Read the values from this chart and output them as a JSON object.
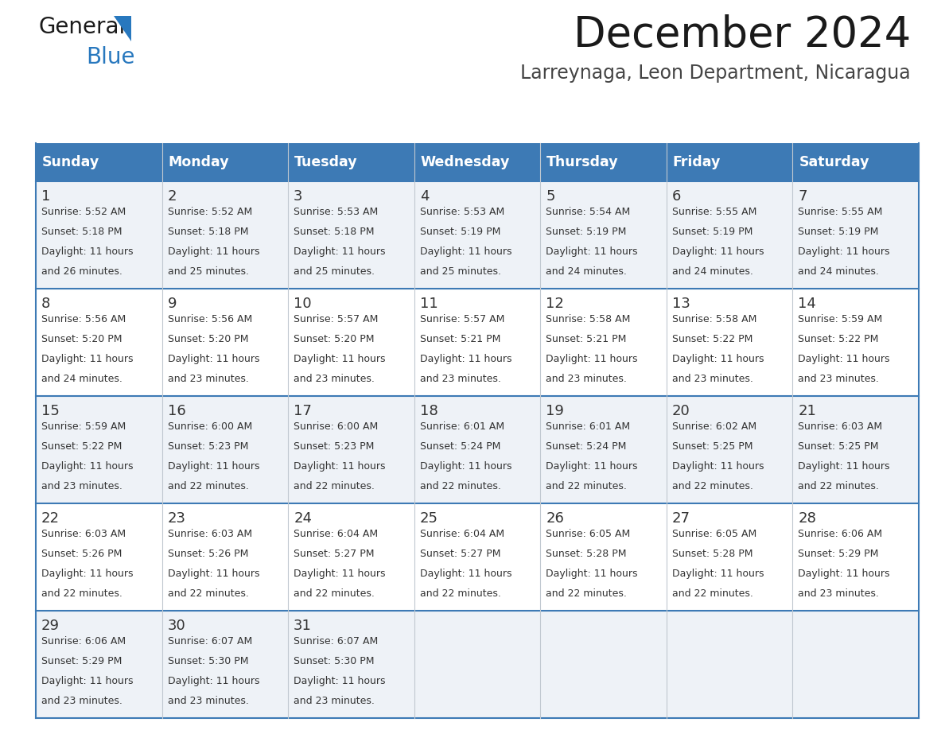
{
  "title": "December 2024",
  "subtitle": "Larreynaga, Leon Department, Nicaragua",
  "header_color": "#3d7ab5",
  "header_text_color": "#ffffff",
  "cell_bg_even": "#eef2f7",
  "cell_bg_odd": "#ffffff",
  "border_color": "#3d7ab5",
  "row_line_color": "#3d7ab5",
  "text_color": "#333333",
  "days_of_week": [
    "Sunday",
    "Monday",
    "Tuesday",
    "Wednesday",
    "Thursday",
    "Friday",
    "Saturday"
  ],
  "weeks": [
    [
      {
        "day": 1,
        "sunrise": "5:52 AM",
        "sunset": "5:18 PM",
        "daylight": "11 hours and 26 minutes."
      },
      {
        "day": 2,
        "sunrise": "5:52 AM",
        "sunset": "5:18 PM",
        "daylight": "11 hours and 25 minutes."
      },
      {
        "day": 3,
        "sunrise": "5:53 AM",
        "sunset": "5:18 PM",
        "daylight": "11 hours and 25 minutes."
      },
      {
        "day": 4,
        "sunrise": "5:53 AM",
        "sunset": "5:19 PM",
        "daylight": "11 hours and 25 minutes."
      },
      {
        "day": 5,
        "sunrise": "5:54 AM",
        "sunset": "5:19 PM",
        "daylight": "11 hours and 24 minutes."
      },
      {
        "day": 6,
        "sunrise": "5:55 AM",
        "sunset": "5:19 PM",
        "daylight": "11 hours and 24 minutes."
      },
      {
        "day": 7,
        "sunrise": "5:55 AM",
        "sunset": "5:19 PM",
        "daylight": "11 hours and 24 minutes."
      }
    ],
    [
      {
        "day": 8,
        "sunrise": "5:56 AM",
        "sunset": "5:20 PM",
        "daylight": "11 hours and 24 minutes."
      },
      {
        "day": 9,
        "sunrise": "5:56 AM",
        "sunset": "5:20 PM",
        "daylight": "11 hours and 23 minutes."
      },
      {
        "day": 10,
        "sunrise": "5:57 AM",
        "sunset": "5:20 PM",
        "daylight": "11 hours and 23 minutes."
      },
      {
        "day": 11,
        "sunrise": "5:57 AM",
        "sunset": "5:21 PM",
        "daylight": "11 hours and 23 minutes."
      },
      {
        "day": 12,
        "sunrise": "5:58 AM",
        "sunset": "5:21 PM",
        "daylight": "11 hours and 23 minutes."
      },
      {
        "day": 13,
        "sunrise": "5:58 AM",
        "sunset": "5:22 PM",
        "daylight": "11 hours and 23 minutes."
      },
      {
        "day": 14,
        "sunrise": "5:59 AM",
        "sunset": "5:22 PM",
        "daylight": "11 hours and 23 minutes."
      }
    ],
    [
      {
        "day": 15,
        "sunrise": "5:59 AM",
        "sunset": "5:22 PM",
        "daylight": "11 hours and 23 minutes."
      },
      {
        "day": 16,
        "sunrise": "6:00 AM",
        "sunset": "5:23 PM",
        "daylight": "11 hours and 22 minutes."
      },
      {
        "day": 17,
        "sunrise": "6:00 AM",
        "sunset": "5:23 PM",
        "daylight": "11 hours and 22 minutes."
      },
      {
        "day": 18,
        "sunrise": "6:01 AM",
        "sunset": "5:24 PM",
        "daylight": "11 hours and 22 minutes."
      },
      {
        "day": 19,
        "sunrise": "6:01 AM",
        "sunset": "5:24 PM",
        "daylight": "11 hours and 22 minutes."
      },
      {
        "day": 20,
        "sunrise": "6:02 AM",
        "sunset": "5:25 PM",
        "daylight": "11 hours and 22 minutes."
      },
      {
        "day": 21,
        "sunrise": "6:03 AM",
        "sunset": "5:25 PM",
        "daylight": "11 hours and 22 minutes."
      }
    ],
    [
      {
        "day": 22,
        "sunrise": "6:03 AM",
        "sunset": "5:26 PM",
        "daylight": "11 hours and 22 minutes."
      },
      {
        "day": 23,
        "sunrise": "6:03 AM",
        "sunset": "5:26 PM",
        "daylight": "11 hours and 22 minutes."
      },
      {
        "day": 24,
        "sunrise": "6:04 AM",
        "sunset": "5:27 PM",
        "daylight": "11 hours and 22 minutes."
      },
      {
        "day": 25,
        "sunrise": "6:04 AM",
        "sunset": "5:27 PM",
        "daylight": "11 hours and 22 minutes."
      },
      {
        "day": 26,
        "sunrise": "6:05 AM",
        "sunset": "5:28 PM",
        "daylight": "11 hours and 22 minutes."
      },
      {
        "day": 27,
        "sunrise": "6:05 AM",
        "sunset": "5:28 PM",
        "daylight": "11 hours and 22 minutes."
      },
      {
        "day": 28,
        "sunrise": "6:06 AM",
        "sunset": "5:29 PM",
        "daylight": "11 hours and 23 minutes."
      }
    ],
    [
      {
        "day": 29,
        "sunrise": "6:06 AM",
        "sunset": "5:29 PM",
        "daylight": "11 hours and 23 minutes."
      },
      {
        "day": 30,
        "sunrise": "6:07 AM",
        "sunset": "5:30 PM",
        "daylight": "11 hours and 23 minutes."
      },
      {
        "day": 31,
        "sunrise": "6:07 AM",
        "sunset": "5:30 PM",
        "daylight": "11 hours and 23 minutes."
      },
      null,
      null,
      null,
      null
    ]
  ],
  "logo_text1": "General",
  "logo_text2": "Blue",
  "logo_color1": "#1a1a1a",
  "logo_color2": "#2878be",
  "fig_width": 11.88,
  "fig_height": 9.18,
  "dpi": 100
}
